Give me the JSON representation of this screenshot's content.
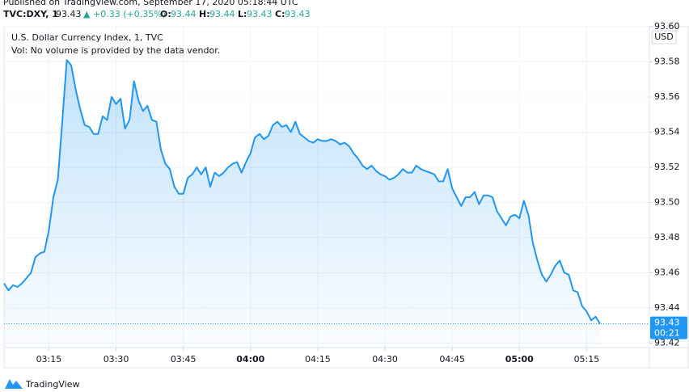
{
  "header": {
    "published": "Published on TradingView.com, September 17, 2020 05:18:44 UTC",
    "symbol": "TVC:DXY, 1",
    "price": "93.43",
    "arrow": "▲",
    "change": "+0.33 (+0.35%)",
    "o_label": "O:",
    "o": "93.44",
    "h_label": "H:",
    "h": "93.44",
    "l_label": "L:",
    "l": "93.43",
    "c_label": "C:",
    "c": "93.43"
  },
  "chart_data": {
    "type": "area",
    "title": "U.S. Dollar Currency Index, 1, TVC",
    "subtitle": "Vol: No volume is provided by the data vendor.",
    "y_unit": "USD",
    "last_price_label": "93.43",
    "countdown": "00:21",
    "x": [
      185,
      186,
      187,
      188,
      189,
      190,
      191,
      192,
      193,
      194,
      195,
      196,
      197,
      198,
      199,
      200,
      201,
      202,
      203,
      204,
      205,
      206,
      207,
      208,
      209,
      210,
      211,
      212,
      213,
      214,
      215,
      216,
      217,
      218,
      219,
      220,
      221,
      222,
      223,
      224,
      225,
      226,
      227,
      228,
      229,
      230,
      231,
      232,
      233,
      234,
      235,
      236,
      237,
      238,
      239,
      240,
      241,
      242,
      243,
      244,
      245,
      246,
      247,
      248,
      249,
      250,
      251,
      252,
      253,
      254,
      255,
      256,
      257,
      258,
      259,
      260,
      261,
      262,
      263,
      264,
      265,
      266,
      267,
      268,
      269,
      270,
      271,
      272,
      273,
      274,
      275,
      276,
      277,
      278,
      279,
      280,
      281,
      282,
      283,
      284,
      285,
      286,
      287,
      288,
      289,
      290,
      291,
      292,
      293,
      294,
      295,
      296,
      297,
      298,
      299,
      300,
      301,
      302,
      303,
      304,
      305,
      306,
      307,
      308,
      309,
      310,
      311,
      312,
      313,
      314,
      315,
      316,
      317,
      318
    ],
    "series": [
      {
        "name": "DXY",
        "color": "#2196f3",
        "values": [
          93.454,
          93.45,
          93.453,
          93.452,
          93.454,
          93.457,
          93.46,
          93.469,
          93.471,
          93.472,
          93.484,
          93.503,
          93.513,
          93.546,
          93.581,
          93.578,
          93.564,
          93.553,
          93.544,
          93.543,
          93.539,
          93.539,
          93.549,
          93.547,
          93.56,
          93.556,
          93.559,
          93.542,
          93.547,
          93.569,
          93.558,
          93.552,
          93.555,
          93.547,
          93.546,
          93.53,
          93.522,
          93.519,
          93.509,
          93.505,
          93.505,
          93.514,
          93.516,
          93.52,
          93.516,
          93.52,
          93.509,
          93.517,
          93.515,
          93.517,
          93.52,
          93.522,
          93.523,
          93.517,
          93.523,
          93.528,
          93.537,
          93.539,
          93.536,
          93.538,
          93.544,
          93.546,
          93.543,
          93.544,
          93.54,
          93.546,
          93.539,
          93.537,
          93.535,
          93.534,
          93.536,
          93.535,
          93.535,
          93.536,
          93.535,
          93.533,
          93.534,
          93.532,
          93.528,
          93.525,
          93.521,
          93.519,
          93.521,
          93.518,
          93.516,
          93.515,
          93.513,
          93.514,
          93.516,
          93.519,
          93.517,
          93.517,
          93.521,
          93.519,
          93.518,
          93.517,
          93.516,
          93.512,
          93.512,
          93.519,
          93.508,
          93.503,
          93.498,
          93.503,
          93.503,
          93.506,
          93.499,
          93.504,
          93.504,
          93.503,
          93.495,
          93.491,
          93.487,
          93.492,
          93.493,
          93.491,
          93.501,
          93.493,
          93.477,
          93.467,
          93.459,
          93.455,
          93.459,
          93.464,
          93.467,
          93.46,
          93.459,
          93.45,
          93.449,
          93.441,
          93.438,
          93.433,
          93.435,
          93.431
        ]
      }
    ],
    "xlim": [
      185,
      329
    ],
    "xticks": [
      {
        "value": 195,
        "label": "03:15"
      },
      {
        "value": 210,
        "label": "03:30"
      },
      {
        "value": 225,
        "label": "03:45"
      },
      {
        "value": 240,
        "label": "04:00"
      },
      {
        "value": 255,
        "label": "04:15"
      },
      {
        "value": 270,
        "label": "04:30"
      },
      {
        "value": 285,
        "label": "04:45"
      },
      {
        "value": 300,
        "label": "05:00"
      },
      {
        "value": 315,
        "label": "05:15"
      }
    ],
    "ylim": [
      93.4175,
      93.6
    ],
    "yticks": [
      93.42,
      93.44,
      93.46,
      93.48,
      {
        "value": 93.5,
        "label": "93.50"
      },
      93.52,
      93.54,
      93.56,
      93.58,
      {
        "value": 93.6,
        "label": "93.60"
      }
    ],
    "grid": true
  },
  "footer": {
    "brand": "TradingView"
  }
}
